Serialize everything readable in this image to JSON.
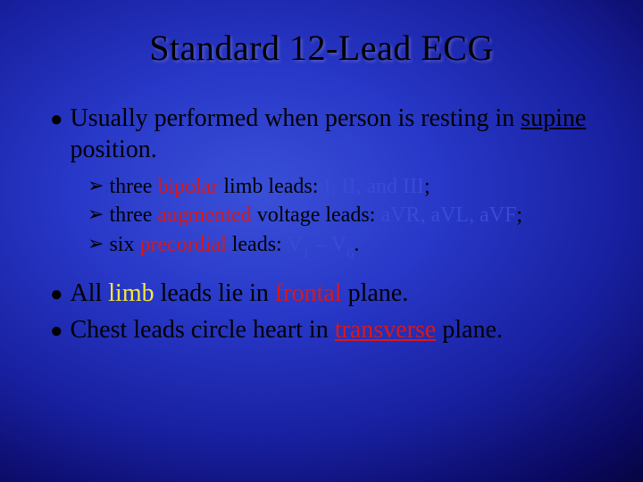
{
  "colors": {
    "background_center": "#3a50d8",
    "background_edge": "#040430",
    "title_color": "#000000",
    "text_black": "#000000",
    "text_red": "#d81818",
    "text_blue": "#3a4ad8",
    "text_yellow": "#f8e838"
  },
  "typography": {
    "title_fontsize": 40,
    "main_bullet_fontsize": 28,
    "sub_bullet_fontsize": 24,
    "font_family": "Times New Roman"
  },
  "title": "Standard 12-Lead ECG",
  "b1": {
    "t1": "Usually performed when person is resting in ",
    "t2": "supine",
    "t3": " position."
  },
  "s1": {
    "a": "three ",
    "b": "bipolar",
    "c": " limb leads: ",
    "d": "I, II, and III",
    "e": ";"
  },
  "s2": {
    "a": "three ",
    "b": "augmented",
    "c": " voltage leads: ",
    "d": "aVR, aVL, aVF",
    "e": ";"
  },
  "s3": {
    "a": " six ",
    "b": "precordial",
    "c": " leads: ",
    "d": "V",
    "n1": "1",
    "dash": " – ",
    "e": "V",
    "n2": "6",
    "f": "."
  },
  "b2": {
    "a": "All ",
    "b": "limb",
    "c": " leads lie in ",
    "d": "frontal",
    "e": " plane."
  },
  "b3": {
    "a": "Chest leads circle heart in ",
    "b": "transverse",
    "c": " plane."
  }
}
